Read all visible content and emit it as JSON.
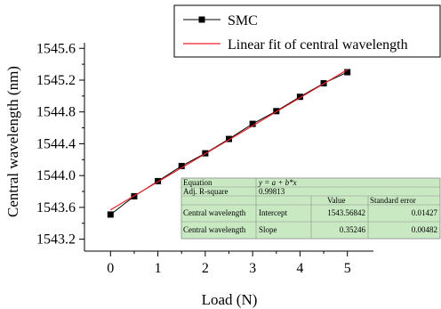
{
  "chart_data": {
    "type": "line",
    "xlabel": "Load (N)",
    "ylabel": "Central wavelength (nm)",
    "xlim": [
      -0.55,
      5.55
    ],
    "ylim": [
      1543.05,
      1545.67
    ],
    "x_ticks": [
      "0",
      "1",
      "2",
      "3",
      "4",
      "5"
    ],
    "y_ticks": [
      "1543.2",
      "1543.6",
      "1544.0",
      "1544.4",
      "1544.8",
      "1545.2",
      "1545.6"
    ],
    "legend_position": "top-right",
    "series": [
      {
        "name": "SMC",
        "style": "line-with-square-markers",
        "color": "#000000",
        "x": [
          0,
          0.5,
          1,
          1.5,
          2,
          2.5,
          3,
          3.5,
          4,
          4.5,
          5
        ],
        "y": [
          1543.51,
          1543.74,
          1543.93,
          1544.12,
          1544.28,
          1544.46,
          1544.65,
          1544.81,
          1544.99,
          1545.16,
          1545.3
        ]
      },
      {
        "name": "Linear fit of central wavelength",
        "style": "line",
        "color": "#e8202a",
        "intercept": 1543.56842,
        "slope": 0.35246,
        "x_range": [
          0,
          5
        ]
      }
    ],
    "fit_table": {
      "background": "#c9e9c3",
      "rows": [
        [
          "Equation",
          "y = a + b*x",
          "",
          ""
        ],
        [
          "Adj. R-square",
          "0.99813",
          "",
          ""
        ],
        [
          "",
          "",
          "Value",
          "Standard error"
        ],
        [
          "Central wavelength",
          "Intercept",
          "1543.56842",
          "0.01427"
        ],
        [
          "Central wavelength",
          "Slope",
          "0.35246",
          "0.00482"
        ]
      ]
    }
  }
}
